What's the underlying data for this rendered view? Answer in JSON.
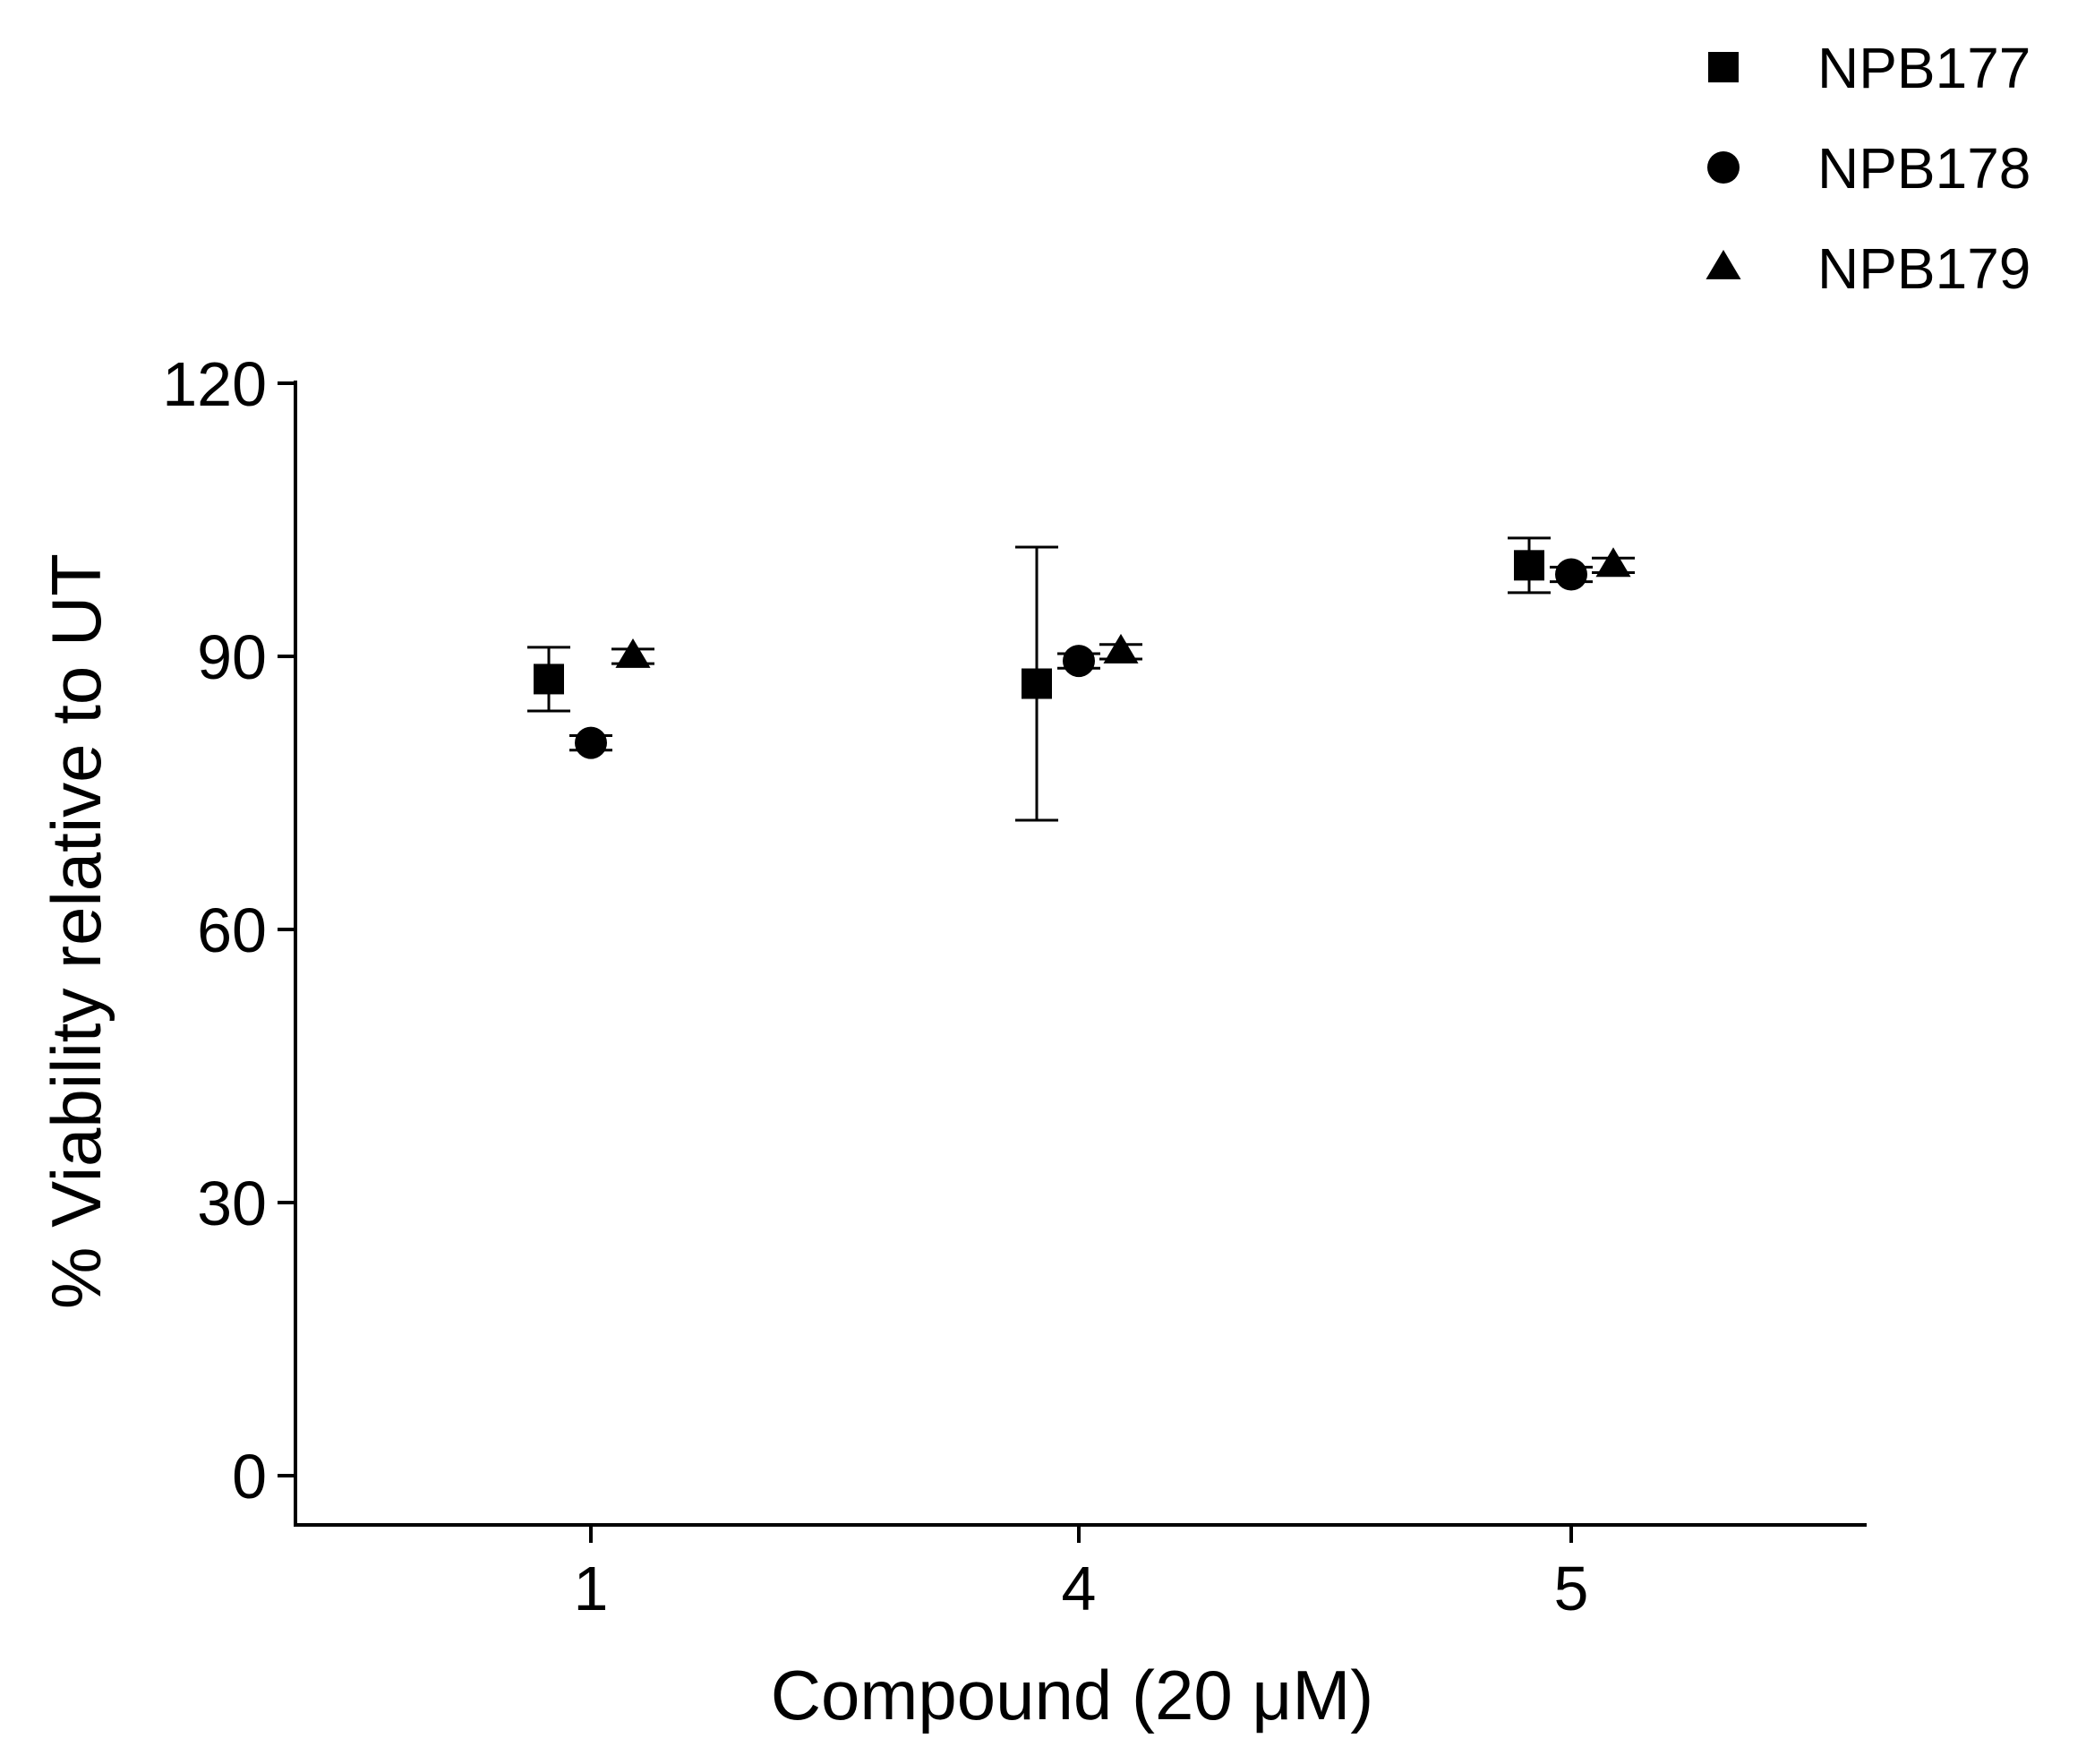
{
  "chart_data": {
    "type": "scatter",
    "title": "",
    "xlabel": "Compound (20 μM)",
    "ylabel": "% Viability relative to UT",
    "categories": [
      "1",
      "4",
      "5"
    ],
    "ylim": [
      0,
      120
    ],
    "yticks": [
      0,
      30,
      60,
      90,
      120
    ],
    "grid": false,
    "legend_position": "top-right",
    "series": [
      {
        "name": "NPB177",
        "marker": "square",
        "color": "#000000",
        "values": [
          87.5,
          87,
          100
        ],
        "error": [
          3.5,
          15,
          3
        ]
      },
      {
        "name": "NPB178",
        "marker": "circle",
        "color": "#000000",
        "values": [
          80.5,
          89.5,
          99
        ],
        "error": [
          0.8,
          0.8,
          0.8
        ]
      },
      {
        "name": "NPB179",
        "marker": "triangle",
        "color": "#000000",
        "values": [
          90,
          90.5,
          100
        ],
        "error": [
          0.8,
          0.8,
          0.8
        ]
      }
    ]
  }
}
